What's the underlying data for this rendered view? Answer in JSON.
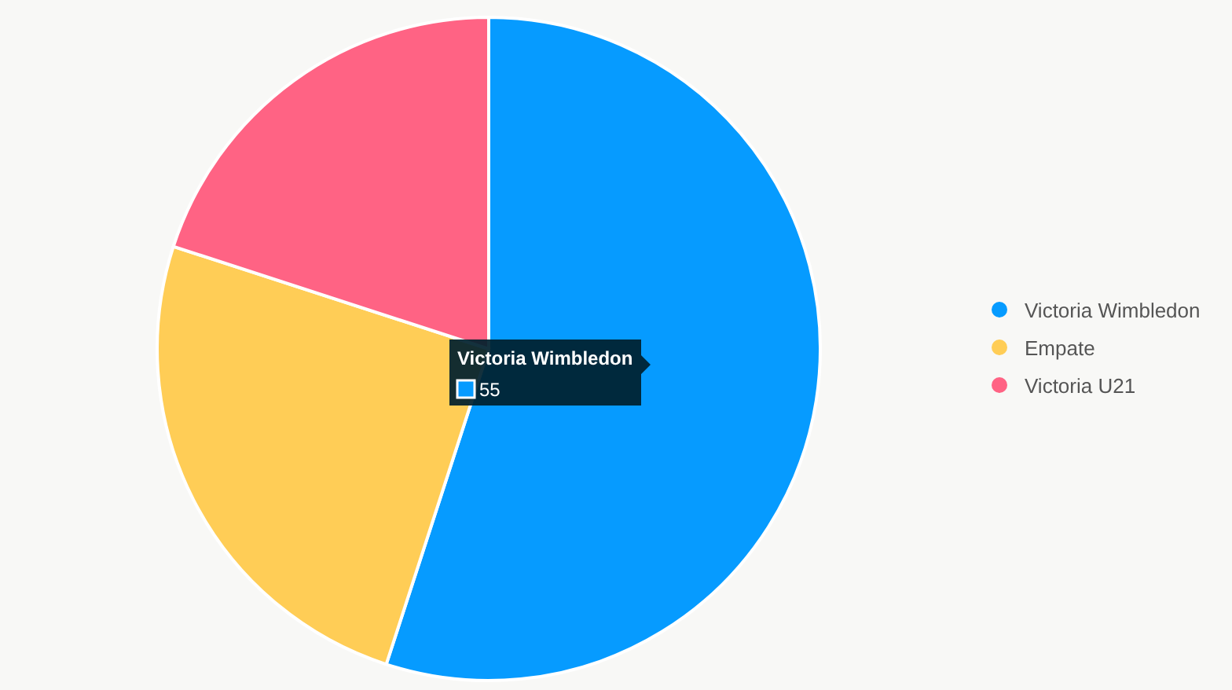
{
  "chart_data": {
    "type": "pie",
    "categories": [
      "Victoria Wimbledon",
      "Empate",
      "Victoria U21"
    ],
    "values": [
      55,
      25,
      20
    ],
    "colors": [
      "#069bff",
      "#ffcd56",
      "#ff6384"
    ],
    "value_labels": [
      "55",
      null,
      null
    ],
    "legend": "right"
  }
}
